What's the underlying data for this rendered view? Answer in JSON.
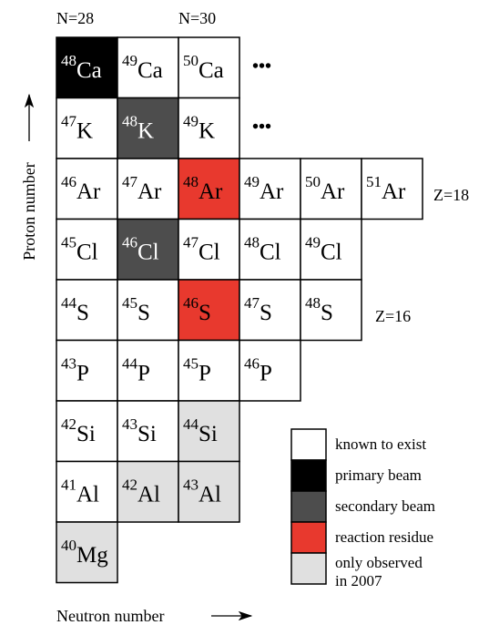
{
  "column_labels": [
    "N=28",
    null,
    "N=30"
  ],
  "rows": [
    {
      "cells": [
        {
          "mass": 48,
          "symbol": "Ca",
          "fill": "#000000"
        },
        {
          "mass": 49,
          "symbol": "Ca",
          "fill": "#ffffff"
        },
        {
          "mass": 50,
          "symbol": "Ca",
          "fill": "#ffffff"
        }
      ],
      "more": "•••"
    },
    {
      "cells": [
        {
          "mass": 47,
          "symbol": "K",
          "fill": "#ffffff"
        },
        {
          "mass": 48,
          "symbol": "K",
          "fill": "#4d4d4d"
        },
        {
          "mass": 49,
          "symbol": "K",
          "fill": "#ffffff"
        }
      ],
      "more": "•••"
    },
    {
      "cells": [
        {
          "mass": 46,
          "symbol": "Ar",
          "fill": "#ffffff"
        },
        {
          "mass": 47,
          "symbol": "Ar",
          "fill": "#ffffff"
        },
        {
          "mass": 48,
          "symbol": "Ar",
          "fill": "#e8392e"
        },
        {
          "mass": 49,
          "symbol": "Ar",
          "fill": "#ffffff"
        },
        {
          "mass": 50,
          "symbol": "Ar",
          "fill": "#ffffff"
        },
        {
          "mass": 51,
          "symbol": "Ar",
          "fill": "#ffffff"
        }
      ],
      "z_label": "Z=18"
    },
    {
      "cells": [
        {
          "mass": 45,
          "symbol": "Cl",
          "fill": "#ffffff"
        },
        {
          "mass": 46,
          "symbol": "Cl",
          "fill": "#4d4d4d"
        },
        {
          "mass": 47,
          "symbol": "Cl",
          "fill": "#ffffff"
        },
        {
          "mass": 48,
          "symbol": "Cl",
          "fill": "#ffffff"
        },
        {
          "mass": 49,
          "symbol": "Cl",
          "fill": "#ffffff"
        }
      ]
    },
    {
      "cells": [
        {
          "mass": 44,
          "symbol": "S",
          "fill": "#ffffff"
        },
        {
          "mass": 45,
          "symbol": "S",
          "fill": "#ffffff"
        },
        {
          "mass": 46,
          "symbol": "S",
          "fill": "#e8392e"
        },
        {
          "mass": 47,
          "symbol": "S",
          "fill": "#ffffff"
        },
        {
          "mass": 48,
          "symbol": "S",
          "fill": "#ffffff"
        }
      ],
      "z_label": "Z=16"
    },
    {
      "cells": [
        {
          "mass": 43,
          "symbol": "P",
          "fill": "#ffffff"
        },
        {
          "mass": 44,
          "symbol": "P",
          "fill": "#ffffff"
        },
        {
          "mass": 45,
          "symbol": "P",
          "fill": "#ffffff"
        },
        {
          "mass": 46,
          "symbol": "P",
          "fill": "#ffffff"
        }
      ]
    },
    {
      "cells": [
        {
          "mass": 42,
          "symbol": "Si",
          "fill": "#ffffff"
        },
        {
          "mass": 43,
          "symbol": "Si",
          "fill": "#ffffff"
        },
        {
          "mass": 44,
          "symbol": "Si",
          "fill": "#e0e0e0"
        }
      ]
    },
    {
      "cells": [
        {
          "mass": 41,
          "symbol": "Al",
          "fill": "#ffffff"
        },
        {
          "mass": 42,
          "symbol": "Al",
          "fill": "#e0e0e0"
        },
        {
          "mass": 43,
          "symbol": "Al",
          "fill": "#e0e0e0"
        }
      ]
    },
    {
      "cells": [
        {
          "mass": 40,
          "symbol": "Mg",
          "fill": "#e0e0e0"
        }
      ]
    }
  ],
  "y_axis_label": "Proton number",
  "x_axis_label": "Neutron number",
  "legend": [
    {
      "color": "#ffffff",
      "lines": [
        "known to exist"
      ]
    },
    {
      "color": "#000000",
      "lines": [
        "primary beam"
      ]
    },
    {
      "color": "#4d4d4d",
      "lines": [
        "secondary beam"
      ]
    },
    {
      "color": "#e8392e",
      "lines": [
        "reaction residue"
      ]
    },
    {
      "color": "#e0e0e0",
      "lines": [
        "only observed",
        "in 2007"
      ]
    }
  ]
}
